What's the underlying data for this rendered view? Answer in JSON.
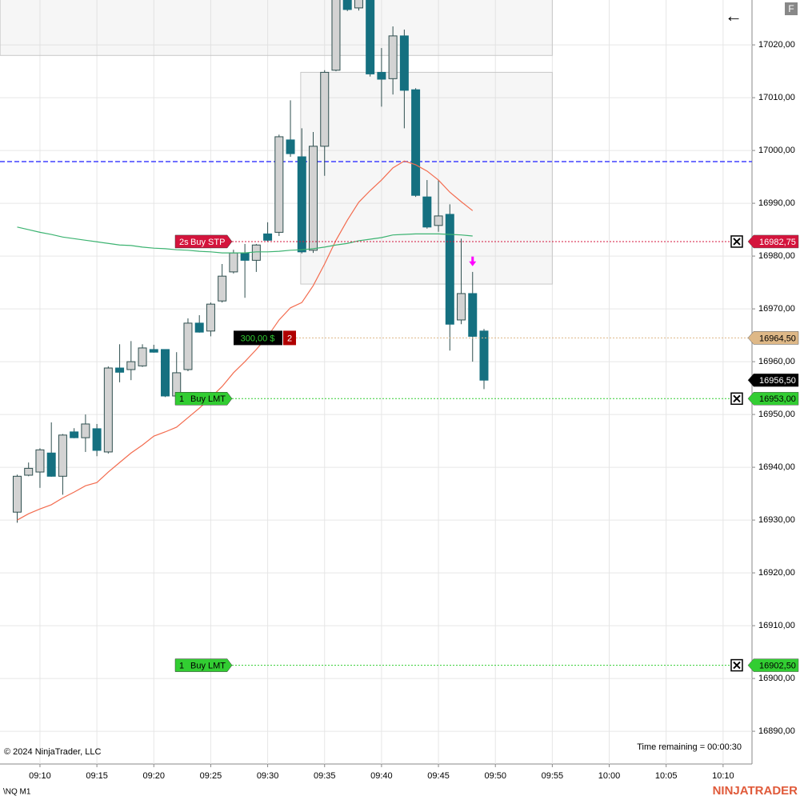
{
  "chart_data": {
    "type": "candlestick",
    "symbol": "\\NQ M1",
    "copyright": "© 2024 NinjaTrader, LLC",
    "time_remaining": "Time remaining = 00:00:30",
    "brand": "NINJATRADER",
    "button": "F",
    "back": "←",
    "x": [
      548,
      549,
      550,
      551,
      552,
      553,
      554,
      555,
      556,
      557,
      558,
      559,
      560,
      561,
      562,
      563,
      564,
      565,
      566,
      567,
      568,
      569,
      570,
      571,
      572,
      573,
      574,
      575,
      576,
      577,
      578,
      579,
      580,
      581,
      582,
      583,
      584,
      585,
      586,
      587,
      588,
      589
    ],
    "open": [
      16931.5,
      16938.5,
      16939.1,
      16942.7,
      16938.3,
      16946.7,
      16945.6,
      16947.3,
      16942.9,
      16958.8,
      16958.5,
      16959.2,
      16962.3,
      16962.3,
      16953.5,
      16958.5,
      16967.3,
      16965.8,
      16971.5,
      16977.0,
      16980.6,
      16979.2,
      16984.2,
      16984.5,
      17002.0,
      16998.8,
      16981.1,
      17000.8,
      17015.2,
      17030.0,
      17027.0,
      17031.0,
      17014.8,
      17013.6,
      17021.7,
      17011.5,
      16991.2,
      16985.8,
      16987.9,
      16967.9,
      16972.9,
      16965.8
    ],
    "high": [
      16938.6,
      16940.9,
      16943.6,
      16948.5,
      16946.3,
      16947.4,
      16950.0,
      16948.2,
      16959.1,
      16963.3,
      16963.9,
      16963.3,
      16963.2,
      16962.3,
      16961.8,
      16968.2,
      16968.8,
      16971.2,
      16978.5,
      16981.2,
      16982.3,
      16982.3,
      16986.4,
      17003.0,
      17009.5,
      17004.2,
      17003.5,
      17015.2,
      17032.0,
      17033.0,
      17033.0,
      17033.0,
      17019.4,
      17023.5,
      17022.9,
      17011.8,
      16994.4,
      16994.4,
      16989.8,
      16983.3,
      16977.0,
      16966.2
    ],
    "low": [
      16929.5,
      16938.3,
      16936.1,
      16938.2,
      16934.8,
      16945.5,
      16942.9,
      16942.1,
      16942.6,
      16956.1,
      16956.5,
      16959.0,
      16961.7,
      16953.3,
      16953.2,
      16958.2,
      16965.5,
      16964.8,
      16971.2,
      16976.7,
      16972.1,
      16977.0,
      16982.7,
      16983.8,
      16998.8,
      16980.5,
      16980.6,
      16995.2,
      17015.0,
      17026.4,
      17026.5,
      17014.0,
      17008.3,
      17010.6,
      17004.2,
      16991.2,
      16985.2,
      16984.6,
      16962.1,
      16967.1,
      16960.0,
      16954.8
    ],
    "close": [
      16938.3,
      16939.8,
      16943.3,
      16938.3,
      16946.1,
      16945.6,
      16948.2,
      16943.2,
      16958.8,
      16958.0,
      16960.0,
      16962.6,
      16961.8,
      16953.5,
      16957.9,
      16967.3,
      16965.6,
      16970.9,
      16976.2,
      16980.6,
      16979.2,
      16982.1,
      16983.0,
      17002.6,
      16999.4,
      16980.8,
      17000.8,
      17014.8,
      17030.0,
      17026.7,
      17031.0,
      17014.5,
      17013.5,
      17021.7,
      17011.4,
      16991.5,
      16985.5,
      16987.6,
      16967.1,
      16972.9,
      16964.8,
      16956.5
    ],
    "up_color": "#d3d3d3",
    "down_color": "#157080",
    "lines": [
      {
        "color": "#f36c4f",
        "values": [
          16930.0,
          16931.2,
          16932.1,
          16932.9,
          16934.2,
          16935.3,
          16936.5,
          16937.1,
          16939.1,
          16940.9,
          16942.7,
          16944.2,
          16945.9,
          16946.7,
          16947.6,
          16949.4,
          16951.2,
          16953.2,
          16955.3,
          16957.9,
          16960.0,
          16962.3,
          16964.8,
          16967.9,
          16970.2,
          16971.2,
          16974.4,
          16978.5,
          16983.0,
          16986.8,
          16990.2,
          16992.4,
          16994.4,
          16996.7,
          16998.0,
          16997.3,
          16996.1,
          16994.4,
          16992.1,
          16990.3,
          16988.6,
          null
        ]
      },
      {
        "color": "#3cb371",
        "values": [
          16985.5,
          16985.0,
          16984.5,
          16984.1,
          16983.6,
          16983.3,
          16983.0,
          16982.7,
          16982.4,
          16982.1,
          16982.0,
          16981.7,
          16981.5,
          16981.4,
          16981.2,
          16981.1,
          16980.9,
          16980.8,
          16980.6,
          16980.6,
          16980.6,
          16980.8,
          16980.8,
          16980.9,
          16981.1,
          16981.2,
          16981.4,
          16981.7,
          16982.1,
          16982.4,
          16982.9,
          16983.2,
          16983.5,
          16984.0,
          16984.1,
          16984.2,
          16984.2,
          16984.2,
          16984.1,
          16984.0,
          16983.8,
          null
        ]
      }
    ],
    "zones": [
      {
        "x": [
          546.5,
          595.0
        ],
        "y": [
          17018.0,
          17030.0
        ]
      },
      {
        "x": [
          572.9,
          595.0
        ],
        "y": [
          16974.7,
          17014.8
        ]
      }
    ],
    "hline": {
      "value": 16997.9,
      "color": "#4040ff"
    },
    "signal": {
      "x": 588,
      "value": 16979.0,
      "color": "#ff00ff"
    },
    "orders": [
      {
        "qty": "2s",
        "type": "Buy STP",
        "price": 16982.75,
        "price_label": "16982,75",
        "color": "#d4143c",
        "text_color": "#ffffff"
      },
      {
        "qty": "1",
        "type": "Buy LMT",
        "price": 16953.0,
        "price_label": "16953,00",
        "color": "#32cd32",
        "text_color": "#000000"
      },
      {
        "qty": "1",
        "type": "Buy LMT",
        "price": 16902.5,
        "price_label": "16902,50",
        "color": "#32cd32",
        "text_color": "#000000"
      }
    ],
    "position": {
      "pnl": "300,00 $",
      "qty": 2,
      "price": 16964.5,
      "price_label": "16964,50",
      "color": "#deb887"
    },
    "last_price": {
      "value": 16956.5,
      "label": "16956,50"
    },
    "xlim": [
      546.49,
      612.54
    ],
    "ylim": [
      16883.8,
      17028.5
    ],
    "xticks": [
      {
        "value": 550,
        "label": "09:10"
      },
      {
        "value": 555,
        "label": "09:15"
      },
      {
        "value": 560,
        "label": "09:20"
      },
      {
        "value": 565,
        "label": "09:25"
      },
      {
        "value": 570,
        "label": "09:30"
      },
      {
        "value": 575,
        "label": "09:35"
      },
      {
        "value": 580,
        "label": "09:40"
      },
      {
        "value": 585,
        "label": "09:45"
      },
      {
        "value": 590,
        "label": "09:50"
      },
      {
        "value": 595,
        "label": "09:55"
      },
      {
        "value": 600,
        "label": "10:00"
      },
      {
        "value": 605,
        "label": "10:05"
      },
      {
        "value": 610,
        "label": "10:10"
      }
    ],
    "yticks": [
      {
        "value": 16890,
        "label": "16890,00"
      },
      {
        "value": 16900,
        "label": "16900,00"
      },
      {
        "value": 16910,
        "label": "16910,00"
      },
      {
        "value": 16920,
        "label": "16920,00"
      },
      {
        "value": 16930,
        "label": "16930,00"
      },
      {
        "value": 16940,
        "label": "16940,00"
      },
      {
        "value": 16950,
        "label": "16950,00"
      },
      {
        "value": 16960,
        "label": "16960,00"
      },
      {
        "value": 16970,
        "label": "16970,00"
      },
      {
        "value": 16980,
        "label": "16980,00"
      },
      {
        "value": 16990,
        "label": "16990,00"
      },
      {
        "value": 17000,
        "label": "17000,00"
      },
      {
        "value": 17010,
        "label": "17010,00"
      },
      {
        "value": 17020,
        "label": "17020,00"
      }
    ],
    "grid": true
  }
}
